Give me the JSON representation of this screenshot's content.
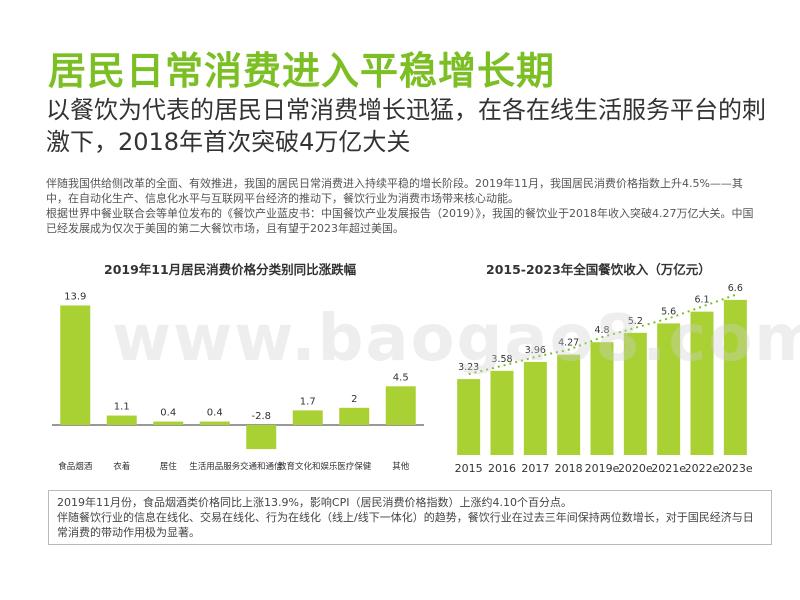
{
  "header": {
    "title": "居民日常消费进入平稳增长期",
    "subtitle": "以餐饮为代表的居民日常消费增长迅猛，在各在线生活服务平台的刺激下，2018年首次突破4万亿大关"
  },
  "intro": {
    "p1": "伴随我国供给侧改革的全面、有效推进，我国的居民日常消费进入持续平稳的增长阶段。2019年11月，我国居民消费价格指数上升4.5%——其中，在自动化生产、信息化水平与互联网平台经济的推动下，餐饮行业为消费市场带来核心动能。",
    "p2": "根据世界中餐业联合会等单位发布的《餐饮产业蓝皮书：中国餐饮产业发展报告（2019）》，我国的餐饮业于2018年收入突破4.27万亿大关。中国已经发展成为仅次于美国的第二大餐饮市场，且有望于2023年超过美国。"
  },
  "watermark": "www.baogao8.com",
  "note": {
    "line1": "2019年11月份，食品烟酒类价格同比上涨13.9%，影响CPI（居民消费价格指数）上涨约4.10个百分点。",
    "line2": "伴随餐饮行业的信息在线化、交易在线化、行为在线化（线上/线下一体化）的趋势，餐饮行业在过去三年间保持两位数增长，对于国民经济与日常消费的带动作用极为显著。"
  },
  "colors": {
    "accent": "#7cbf24",
    "bar": "#a9d134",
    "trend": "#7cbf24"
  },
  "chart_data": [
    {
      "type": "bar",
      "title": "2019年11月居民消费价格分类别同比涨跌幅",
      "categories": [
        "食品烟酒",
        "衣着",
        "居住",
        "生活用品服务",
        "交通和通信",
        "教育文化和娱乐",
        "医疗保健",
        "其他"
      ],
      "values": [
        13.9,
        1.1,
        0.4,
        0.4,
        -2.8,
        1.7,
        2,
        4.5
      ],
      "value_labels": [
        "13.9",
        "1.1",
        "0.4",
        "0.4",
        "-2.8",
        "1.7",
        "2",
        "4.5"
      ],
      "grid": false,
      "legend": "none"
    },
    {
      "type": "bar",
      "title": "2015-2023年全国餐饮收入（万亿元）",
      "categories": [
        "2015",
        "2016",
        "2017",
        "2018",
        "2019e",
        "2020e",
        "2021e",
        "2022e",
        "2023e"
      ],
      "values": [
        3.23,
        3.58,
        3.96,
        4.27,
        4.8,
        5.2,
        5.6,
        6.1,
        6.6
      ],
      "value_labels": [
        "3.23",
        "3.58",
        "3.96",
        "4.27",
        "4.8",
        "5.2",
        "5.6",
        "6.1",
        "6.6"
      ],
      "trend_line": true,
      "grid": false,
      "legend": "none"
    }
  ]
}
